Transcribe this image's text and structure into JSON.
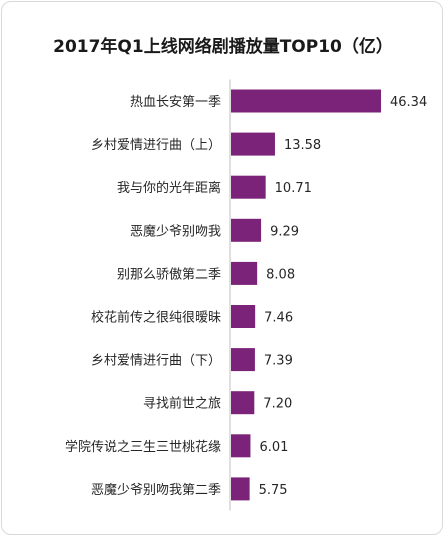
{
  "chart_data": {
    "type": "bar",
    "orientation": "horizontal",
    "title": "2017年Q1上线网络剧播放量TOP10（亿）",
    "categories": [
      "热血长安第一季",
      "乡村爱情进行曲（上）",
      "我与你的光年距离",
      "恶魔少爷别吻我",
      "别那么骄傲第二季",
      "校花前传之很纯很暧昧",
      "乡村爱情进行曲（下）",
      "寻找前世之旅",
      "学院传说之三生三世桃花缘",
      "恶魔少爷别吻我第二季"
    ],
    "values": [
      46.34,
      13.58,
      10.71,
      9.29,
      8.08,
      7.46,
      7.39,
      7.2,
      6.01,
      5.75
    ],
    "value_labels": [
      "46.34",
      "13.58",
      "10.71",
      "9.29",
      "8.08",
      "7.46",
      "7.39",
      "7.20",
      "6.01",
      "5.75"
    ],
    "bar_color": "#7b2378",
    "axis_color": "#bfbfbf",
    "xlim": [
      0,
      46.34
    ],
    "grid": false,
    "legend": "none",
    "xlabel": "",
    "ylabel": ""
  }
}
